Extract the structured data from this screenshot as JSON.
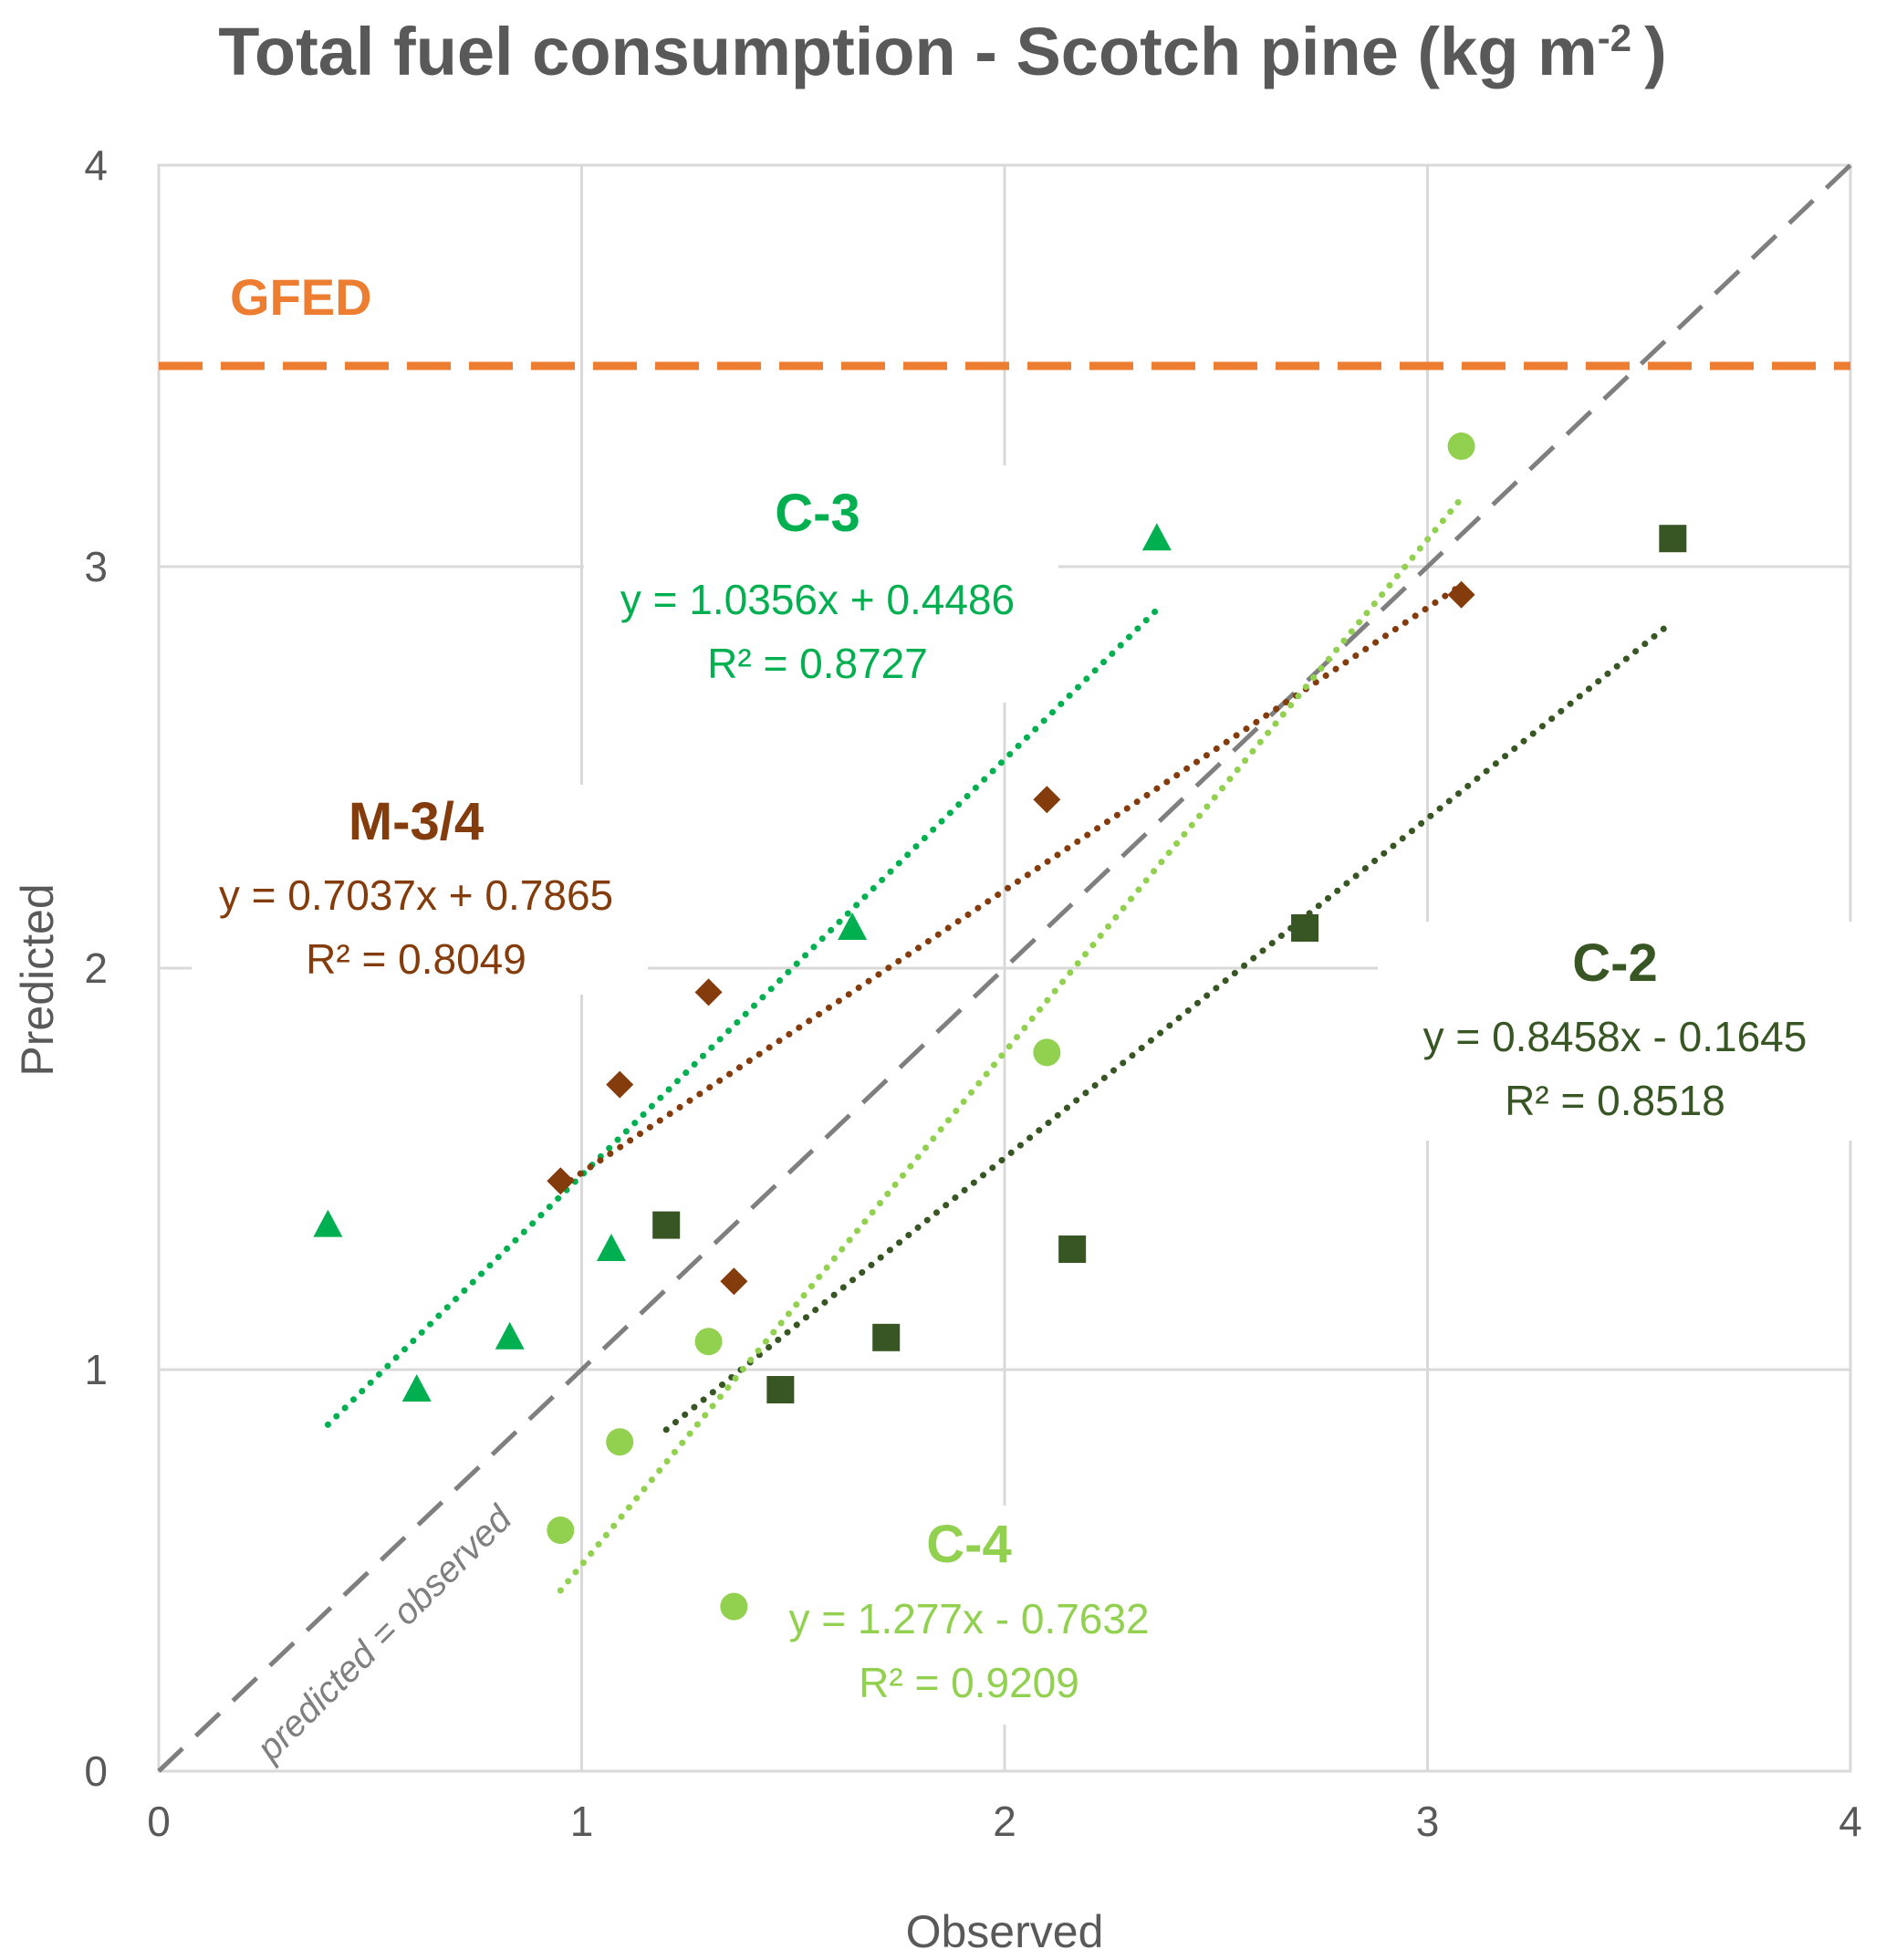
{
  "chart_data": {
    "type": "scatter",
    "title": "Total fuel consumption  - Scotch pine (kg m",
    "title_superscript": "-2",
    "title_suffix": ")",
    "xlabel": "Observed",
    "ylabel": "Predicted",
    "xlim": [
      0,
      4
    ],
    "ylim": [
      0,
      4
    ],
    "xticks": [
      "0",
      "1",
      "2",
      "3",
      "4"
    ],
    "yticks": [
      "0",
      "1",
      "2",
      "3",
      "4"
    ],
    "grid": true,
    "reference_line": {
      "label": "GFED",
      "y": 3.5,
      "color": "#ED7D31"
    },
    "identity_line": {
      "label": "predicted = observed",
      "color": "#7F7F7F"
    },
    "series": [
      {
        "name": "C-3",
        "marker": "triangle",
        "color": "#00B050",
        "points": [
          [
            0.4,
            1.36
          ],
          [
            0.61,
            0.95
          ],
          [
            0.83,
            1.08
          ],
          [
            1.07,
            1.3
          ],
          [
            1.64,
            2.1
          ],
          [
            2.36,
            3.07
          ]
        ],
        "trend": {
          "x_range": [
            0.4,
            2.36
          ],
          "slope": 1.0356,
          "intercept": 0.4486
        },
        "equation": "y = 1.0356x + 0.4486",
        "r2": "R² = 0.8727"
      },
      {
        "name": "M-3/4",
        "marker": "diamond",
        "color": "#843C0C",
        "points": [
          [
            0.95,
            1.47
          ],
          [
            1.09,
            1.71
          ],
          [
            1.3,
            1.94
          ],
          [
            1.36,
            1.22
          ],
          [
            2.1,
            2.42
          ],
          [
            3.08,
            2.93
          ]
        ],
        "trend": {
          "x_range": [
            0.95,
            3.08
          ],
          "slope": 0.7037,
          "intercept": 0.7865
        },
        "equation": "y = 0.7037x + 0.7865",
        "r2": "R² = 0.8049"
      },
      {
        "name": "C-2",
        "marker": "square",
        "color": "#375623",
        "points": [
          [
            1.2,
            1.36
          ],
          [
            1.47,
            0.95
          ],
          [
            1.72,
            1.08
          ],
          [
            2.16,
            1.3
          ],
          [
            2.71,
            2.1
          ],
          [
            3.58,
            3.07
          ]
        ],
        "trend": {
          "x_range": [
            1.2,
            3.58
          ],
          "slope": 0.8458,
          "intercept": -0.1645
        },
        "equation": "y = 0.8458x - 0.1645",
        "r2": "R² = 0.8518"
      },
      {
        "name": "C-4",
        "marker": "circle",
        "color": "#92D050",
        "points": [
          [
            0.95,
            0.6
          ],
          [
            1.09,
            0.82
          ],
          [
            1.3,
            1.07
          ],
          [
            1.36,
            0.41
          ],
          [
            2.1,
            1.79
          ],
          [
            3.08,
            3.3
          ]
        ],
        "trend": {
          "x_range": [
            0.95,
            3.08
          ],
          "slope": 1.277,
          "intercept": -0.7632
        },
        "equation": "y = 1.277x - 0.7632",
        "r2": "R² = 0.9209"
      }
    ]
  }
}
